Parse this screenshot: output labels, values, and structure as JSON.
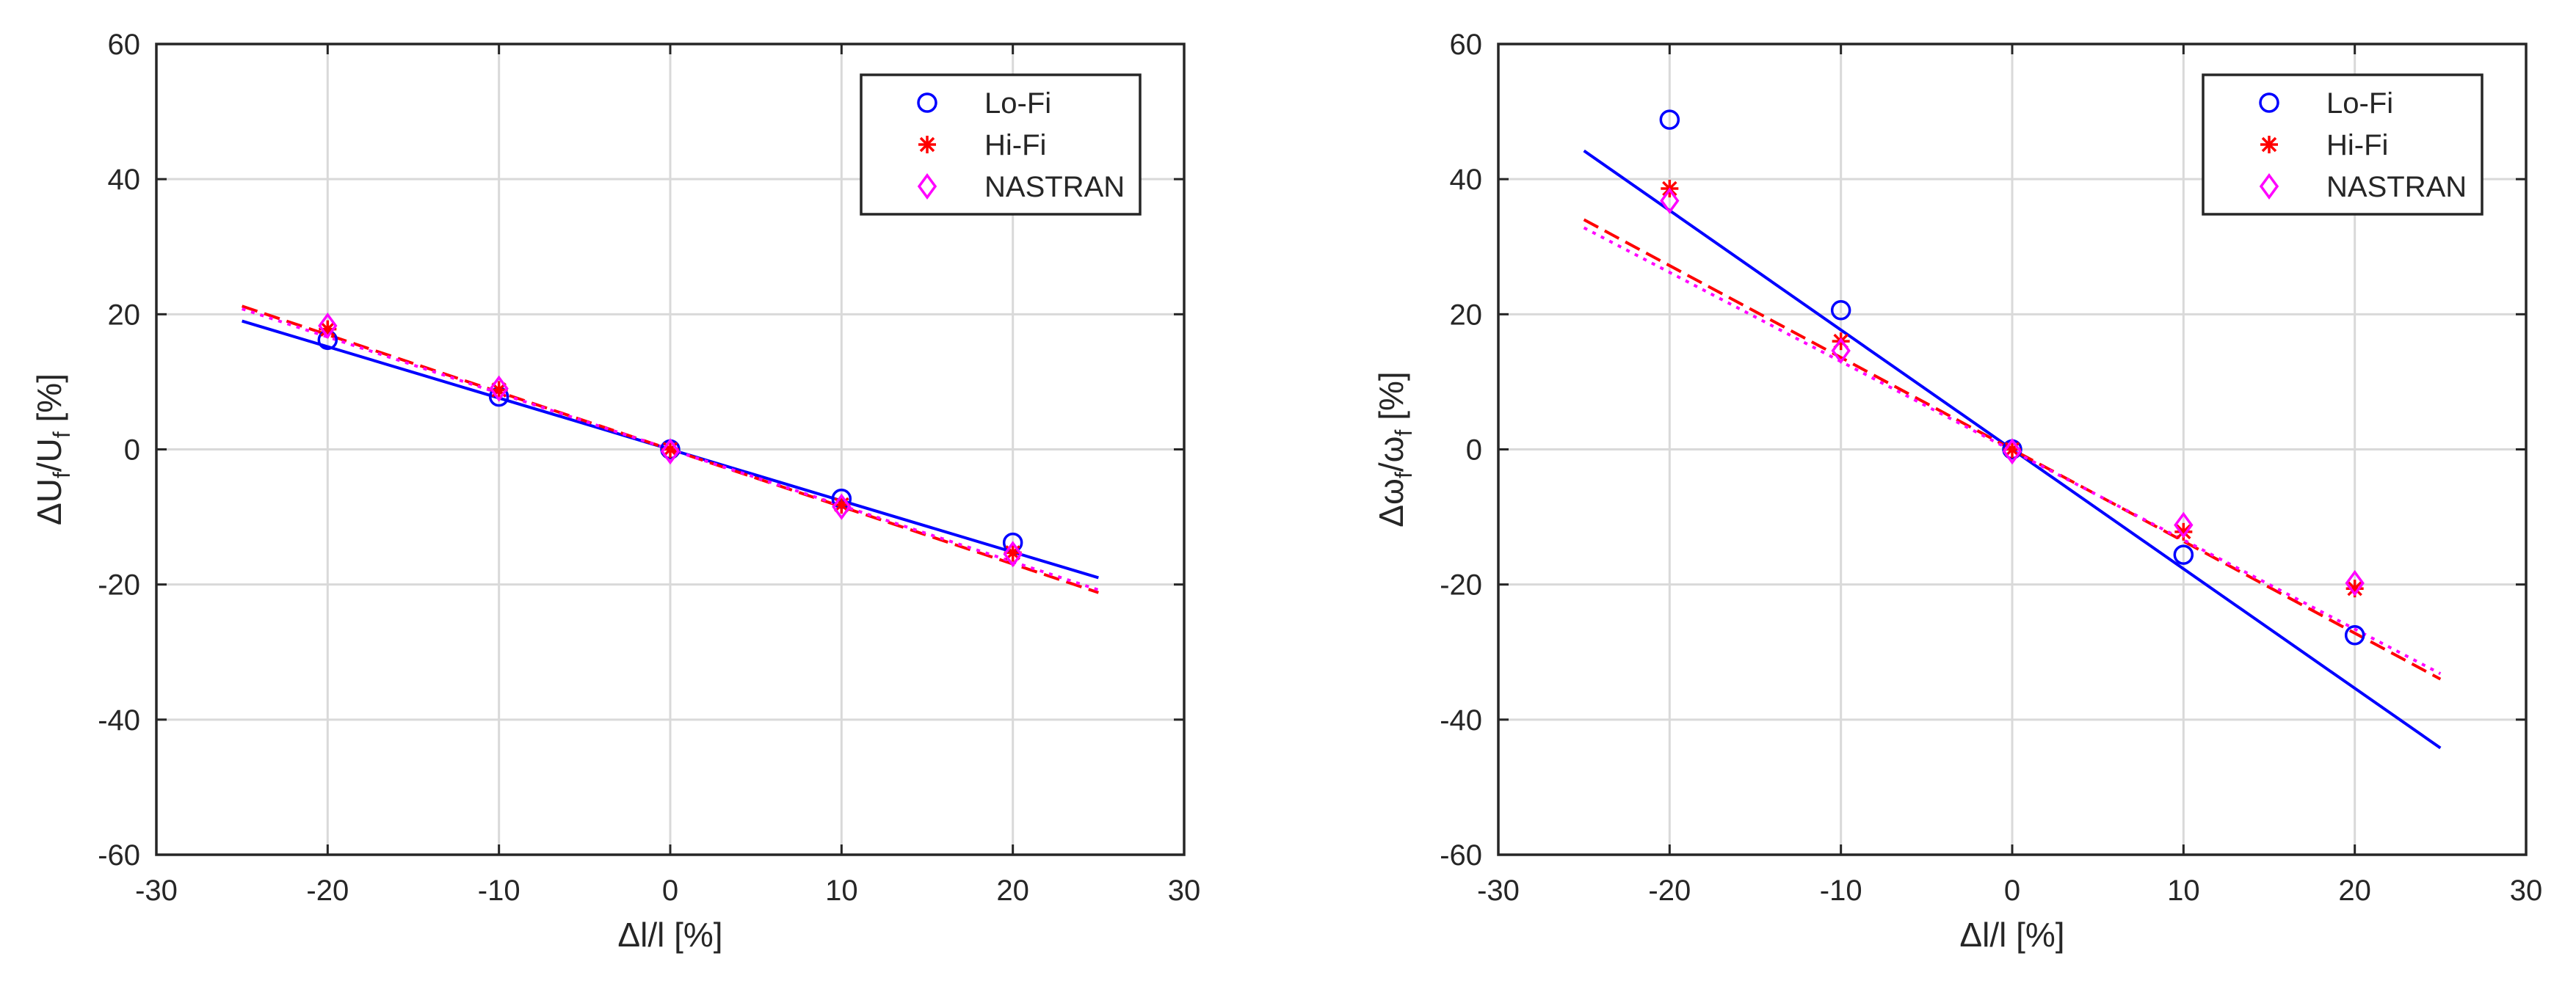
{
  "chart_data": [
    {
      "type": "scatter",
      "xlabel": "Δl/l [%]",
      "ylabel": {
        "main": "ΔU",
        "sub1": "f",
        "mid": "/U",
        "sub2": "f",
        "tail": " [%]"
      },
      "xlim": [
        -30,
        30
      ],
      "ylim": [
        -60,
        60
      ],
      "xticks": [
        -30,
        -20,
        -10,
        0,
        10,
        20,
        30
      ],
      "yticks": [
        -60,
        -40,
        -20,
        0,
        20,
        40,
        60
      ],
      "grid": true,
      "legend": {
        "position": "top-right",
        "entries": [
          "Lo-Fi",
          "Hi-Fi",
          "NASTRAN"
        ]
      },
      "series": [
        {
          "name": "Lo-Fi",
          "marker": "circle",
          "color": "#0000ff",
          "x": [
            -20,
            -10,
            0,
            10,
            20
          ],
          "y": [
            16.2,
            7.8,
            0,
            -7.3,
            -13.8
          ],
          "fit": {
            "style": "solid",
            "x": [
              -25,
              25
            ],
            "y": [
              19.0,
              -19.0
            ]
          }
        },
        {
          "name": "Hi-Fi",
          "marker": "asterisk",
          "color": "#ff0000",
          "x": [
            -20,
            -10,
            0,
            10,
            20
          ],
          "y": [
            17.8,
            8.8,
            0,
            -8.2,
            -15.3
          ],
          "fit": {
            "style": "dashed",
            "x": [
              -25,
              25
            ],
            "y": [
              21.2,
              -21.2
            ]
          }
        },
        {
          "name": "NASTRAN",
          "marker": "diamond",
          "color": "#ff00ff",
          "x": [
            -20,
            -10,
            0,
            10,
            20
          ],
          "y": [
            18.3,
            9.0,
            -0.3,
            -8.5,
            -15.5
          ],
          "fit": {
            "style": "dotted",
            "x": [
              -25,
              25
            ],
            "y": [
              20.8,
              -20.8
            ]
          }
        }
      ]
    },
    {
      "type": "scatter",
      "xlabel": "Δl/l [%]",
      "ylabel": {
        "main": "Δω",
        "sub1": "f",
        "mid": "/ω",
        "sub2": "f",
        "tail": " [%]"
      },
      "xlim": [
        -30,
        30
      ],
      "ylim": [
        -60,
        60
      ],
      "xticks": [
        -30,
        -20,
        -10,
        0,
        10,
        20,
        30
      ],
      "yticks": [
        -60,
        -40,
        -20,
        0,
        20,
        40,
        60
      ],
      "grid": true,
      "legend": {
        "position": "top-right",
        "entries": [
          "Lo-Fi",
          "Hi-Fi",
          "NASTRAN"
        ]
      },
      "series": [
        {
          "name": "Lo-Fi",
          "marker": "circle",
          "color": "#0000ff",
          "x": [
            -20,
            -10,
            0,
            10,
            20
          ],
          "y": [
            48.8,
            20.6,
            0,
            -15.6,
            -27.5
          ],
          "fit": {
            "style": "solid",
            "x": [
              -25,
              25
            ],
            "y": [
              44.2,
              -44.2
            ]
          }
        },
        {
          "name": "Hi-Fi",
          "marker": "asterisk",
          "color": "#ff0000",
          "x": [
            -20,
            -10,
            0,
            10,
            20
          ],
          "y": [
            38.6,
            16.0,
            0,
            -12.2,
            -20.6
          ],
          "fit": {
            "style": "dashed",
            "x": [
              -25,
              25
            ],
            "y": [
              34.0,
              -34.0
            ]
          }
        },
        {
          "name": "NASTRAN",
          "marker": "diamond",
          "color": "#ff00ff",
          "x": [
            -20,
            -10,
            0,
            10,
            20
          ],
          "y": [
            36.8,
            14.6,
            -0.3,
            -11.2,
            -19.8
          ],
          "fit": {
            "style": "dotted",
            "x": [
              -25,
              25
            ],
            "y": [
              32.8,
              -33.2
            ]
          }
        }
      ]
    }
  ]
}
